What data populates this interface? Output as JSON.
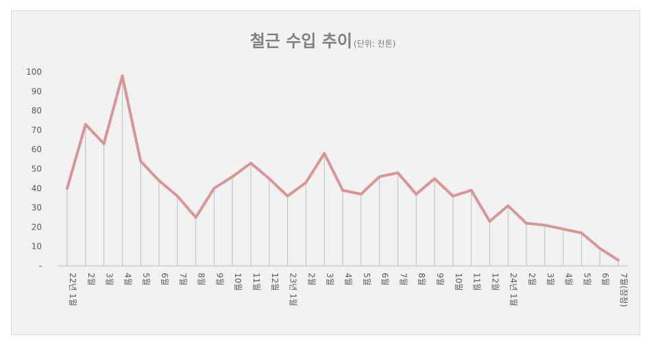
{
  "chart_data": {
    "type": "line",
    "title": "철근 수입 추이",
    "subtitle": "(단위: 천톤)",
    "xlabel": "",
    "ylabel": "",
    "ylim": [
      0,
      100
    ],
    "yticks": [
      "-",
      "10",
      "20",
      "30",
      "40",
      "50",
      "60",
      "70",
      "80",
      "90",
      "100"
    ],
    "grid": false,
    "drop_lines": true,
    "legend": "none",
    "categories": [
      "22년 1월",
      "2월",
      "3월",
      "4월",
      "5월",
      "6월",
      "7월",
      "8월",
      "9월",
      "10월",
      "11월",
      "12월",
      "23년 1월",
      "2월",
      "3월",
      "4월",
      "5월",
      "6월",
      "7월",
      "8월",
      "9월",
      "10월",
      "11월",
      "12월",
      "24년 1월",
      "2월",
      "3월",
      "4월",
      "5월",
      "6월",
      "7월(잠정)"
    ],
    "series": [
      {
        "values": [
          40,
          73,
          63,
          98,
          54,
          44,
          36,
          25,
          40,
          46,
          53,
          45,
          36,
          43,
          58,
          39,
          37,
          46,
          48,
          37,
          45,
          36,
          39,
          23,
          31,
          22,
          21,
          19,
          17,
          9,
          3
        ],
        "color": "#d99594"
      }
    ],
    "drop_line_color": "#bfbfbf",
    "axis_color": "#bfbfbf",
    "text_color": "#595959",
    "title_color": "#7f7f7f"
  }
}
